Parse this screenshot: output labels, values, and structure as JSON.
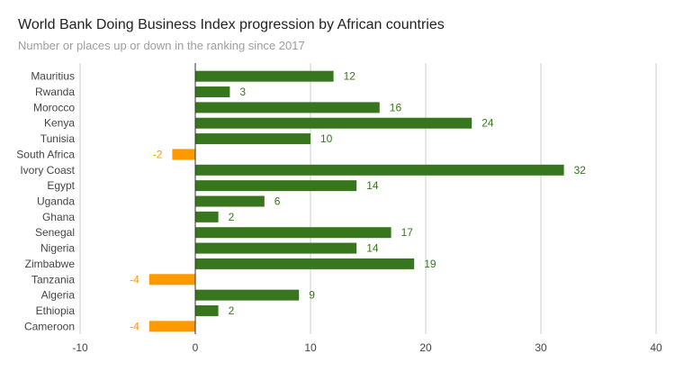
{
  "chart_data": {
    "type": "bar",
    "orientation": "horizontal",
    "title": "World Bank Doing Business Index progression by African countries",
    "subtitle": "Number or places up or down in the ranking since 2017",
    "xlabel": "",
    "ylabel": "",
    "categories": [
      "Mauritius",
      "Rwanda",
      "Morocco",
      "Kenya",
      "Tunisia",
      "South Africa",
      "Ivory Coast",
      "Egypt",
      "Uganda",
      "Ghana",
      "Senegal",
      "Nigeria",
      "Zimbabwe",
      "Tanzania",
      "Algeria",
      "Ethiopia",
      "Cameroon"
    ],
    "values": [
      12,
      3,
      16,
      24,
      10,
      -2,
      32,
      14,
      6,
      2,
      17,
      14,
      19,
      -4,
      9,
      2,
      -4
    ],
    "xlim": [
      -10,
      40
    ],
    "xticks": [
      -10,
      0,
      10,
      20,
      30,
      40
    ],
    "grid": true,
    "data_labels": true,
    "legend": "none",
    "colors": {
      "positive": "#38761d",
      "negative": "#ff9900",
      "grid": "#cccccc",
      "zero_line": "#333333",
      "axis_text": "#444444"
    }
  }
}
